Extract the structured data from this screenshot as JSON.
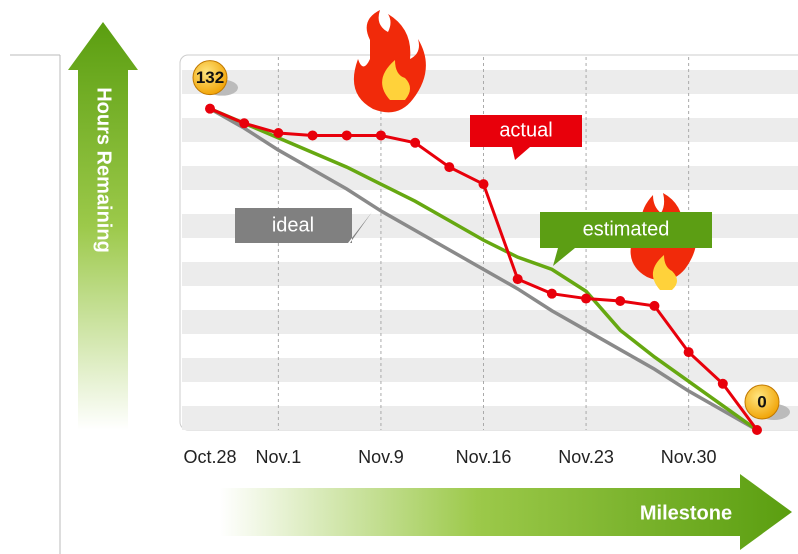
{
  "chart_data": {
    "type": "line",
    "y_axis_label": "Hours Remaining",
    "x_axis_label": "Milestone",
    "categories": [
      "Oct.28",
      null,
      "Nov.1",
      null,
      null,
      "Nov.9",
      null,
      null,
      "Nov.16",
      null,
      null,
      "Nov.23",
      null,
      null,
      "Nov.30",
      null,
      null
    ],
    "ylim": [
      0,
      152
    ],
    "series": [
      {
        "name": "ideal",
        "color": "#8a8a8a",
        "values": [
          132,
          124,
          115,
          107,
          99,
          90,
          82,
          74,
          66,
          58,
          49,
          41,
          33,
          25,
          16,
          8,
          0
        ]
      },
      {
        "name": "estimated",
        "color": "#66a811",
        "values": [
          132,
          126,
          120,
          114,
          108,
          101,
          94,
          86,
          78,
          71,
          66,
          57,
          41,
          30,
          20,
          10,
          0
        ]
      },
      {
        "name": "actual",
        "color": "#e8000b",
        "values": [
          132,
          126,
          122,
          121,
          121,
          121,
          118,
          108,
          101,
          62,
          56,
          54,
          53,
          51,
          32,
          19,
          0
        ]
      }
    ]
  }
}
